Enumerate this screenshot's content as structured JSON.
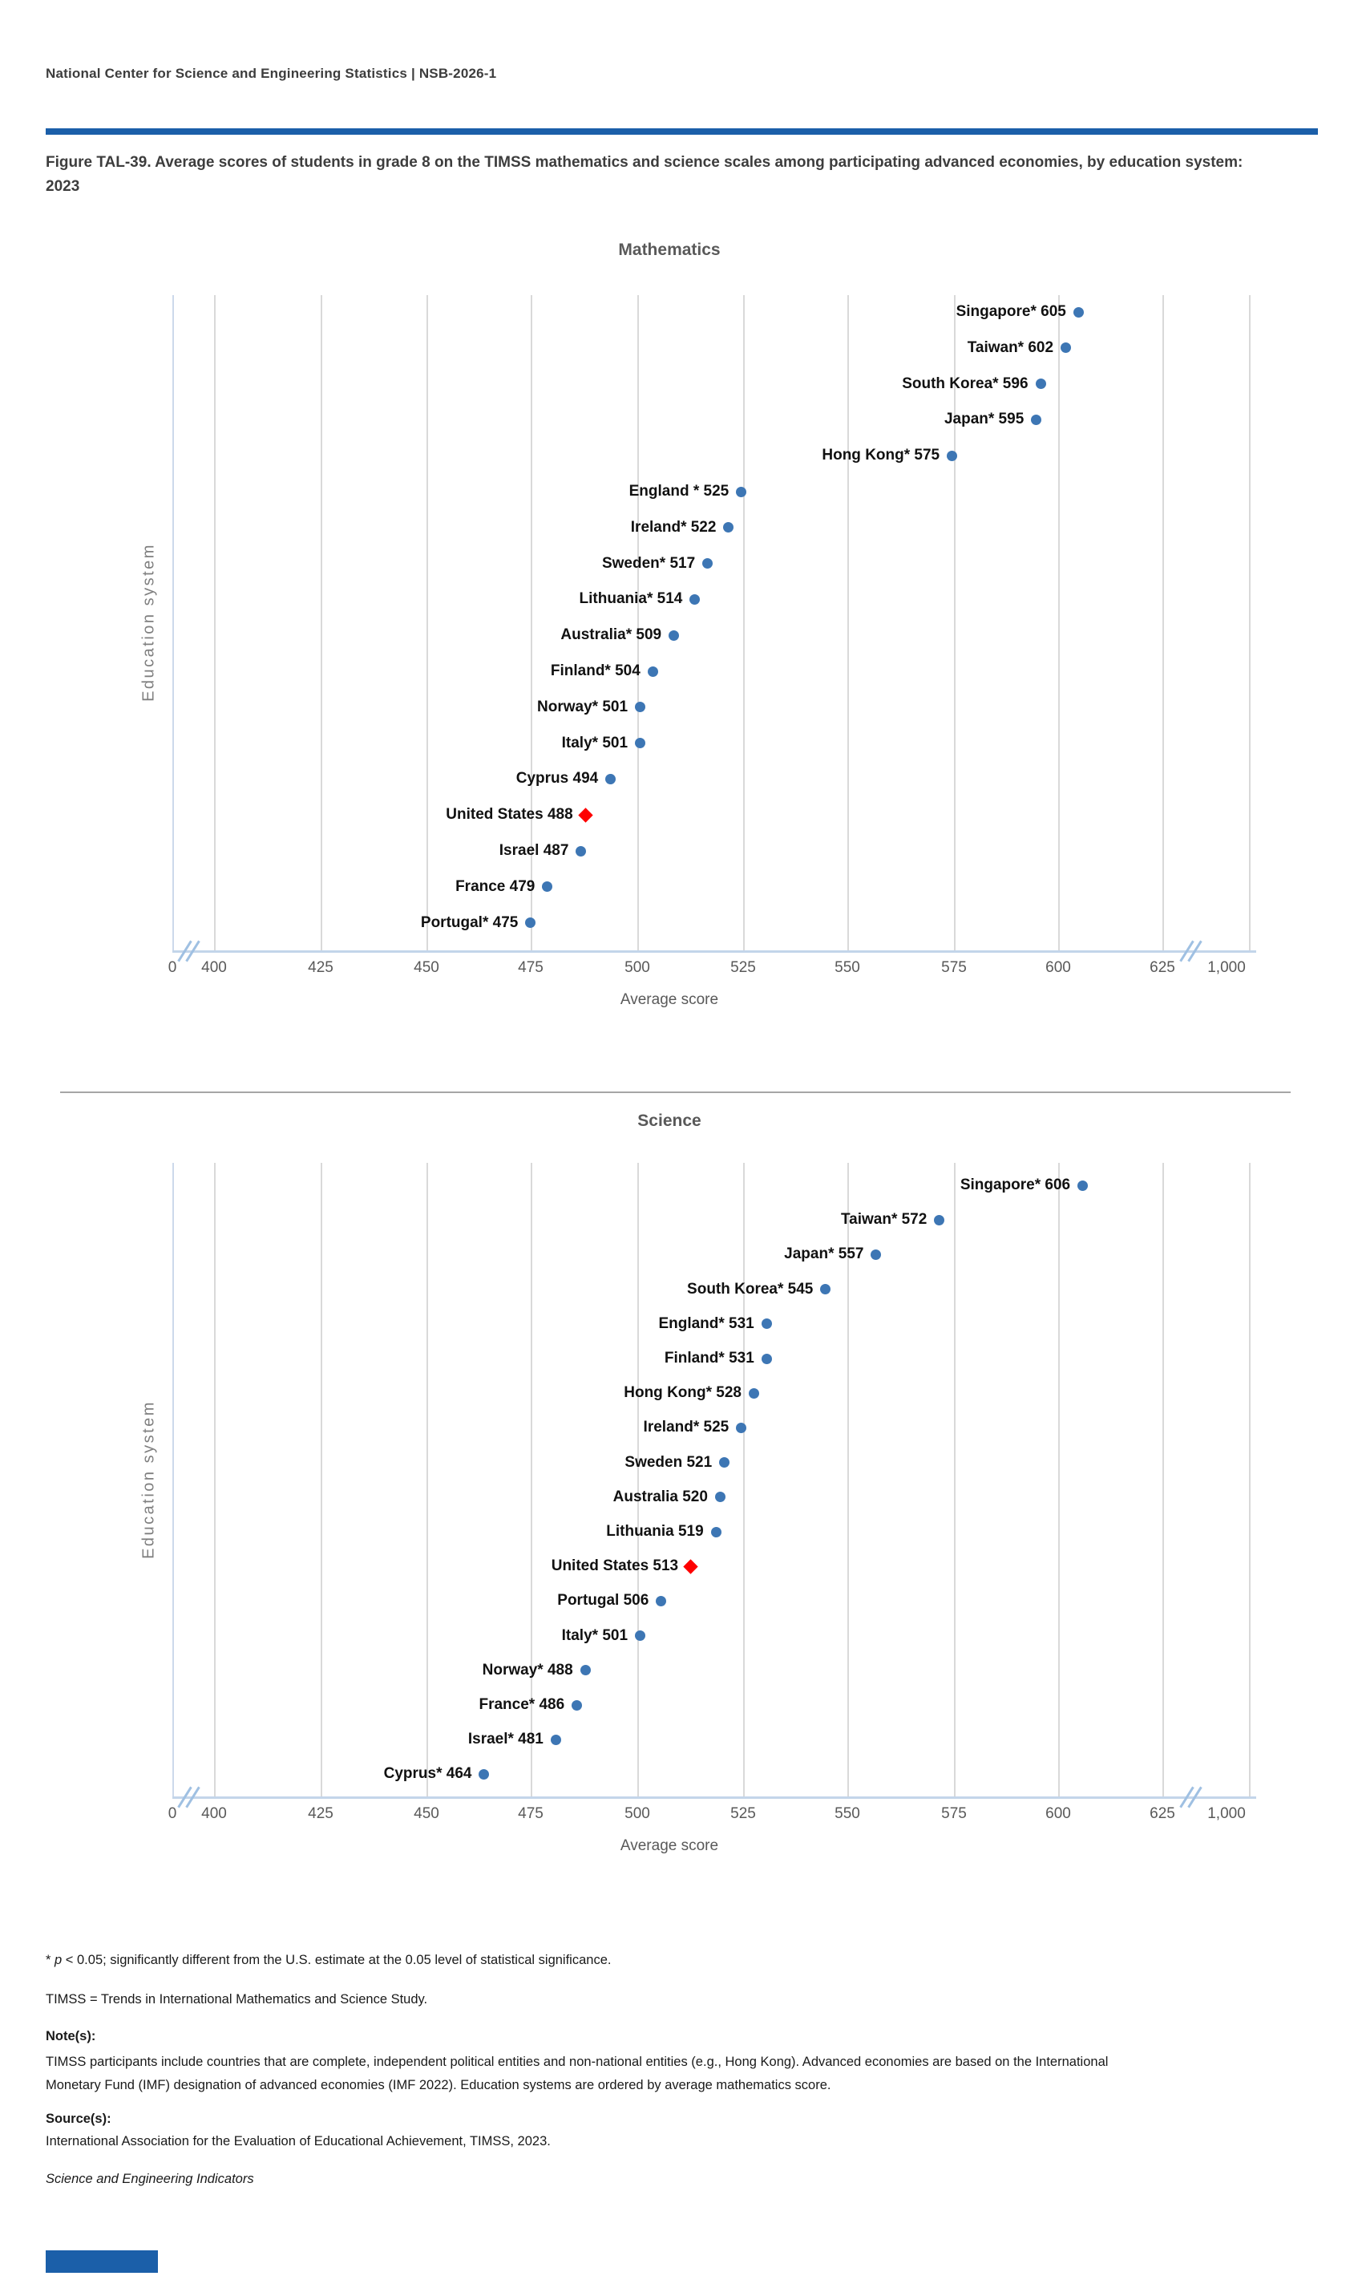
{
  "page": {
    "header": "National Center for Science and Engineering Statistics  |  NSB-2026-1",
    "figure_title": "Figure TAL-39. Average scores of students in grade 8 on the TIMSS mathematics and science scales among participating advanced economies, by education system: 2023",
    "footer_brand": "Science and Engineering Indicators"
  },
  "footnotes": {
    "significance_prefix": "* ",
    "significance_p": "p",
    "significance_rest": " < 0.05; significantly different from the U.S. estimate at the 0.05 level of statistical significance.",
    "timss_definition": "TIMSS = Trends in International Mathematics and Science Study.",
    "notes_heading": "Note(s):",
    "notes_body": "TIMSS participants include countries that are complete, independent political entities and non-national entities (e.g., Hong Kong). Advanced economies are based on the International Monetary Fund (IMF) designation of advanced economies (IMF 2022). Education systems are ordered by average mathematics score.",
    "source_heading": "Source(s):",
    "source_body": "International Association for the Evaluation of Educational Achievement, TIMSS, 2023."
  },
  "chart_data": [
    {
      "type": "scatter",
      "title": "Mathematics",
      "xlabel": "Average score",
      "ylabel": "Education system",
      "x_ticks": [
        "0",
        "400",
        "425",
        "450",
        "475",
        "500",
        "525",
        "550",
        "575",
        "600",
        "625",
        "1,000"
      ],
      "xlim_visible": [
        400,
        625
      ],
      "axis_breaks": "x-axis broken between 0 and 400 and between 625 and 1,000",
      "grid": true,
      "legend": "none",
      "marker_color": "#3d76b4",
      "highlight_color": "#fe0000",
      "points": [
        {
          "label": "Singapore*",
          "value": 605
        },
        {
          "label": "Taiwan*",
          "value": 602
        },
        {
          "label": "South Korea*",
          "value": 596
        },
        {
          "label": "Japan*",
          "value": 595
        },
        {
          "label": "Hong Kong*",
          "value": 575
        },
        {
          "label": "England *",
          "value": 525
        },
        {
          "label": "Ireland*",
          "value": 522
        },
        {
          "label": "Sweden*",
          "value": 517
        },
        {
          "label": "Lithuania*",
          "value": 514
        },
        {
          "label": "Australia*",
          "value": 509
        },
        {
          "label": "Finland*",
          "value": 504
        },
        {
          "label": "Norway*",
          "value": 501
        },
        {
          "label": "Italy*",
          "value": 501
        },
        {
          "label": "Cyprus",
          "value": 494
        },
        {
          "label": "United States",
          "value": 488,
          "highlight": true
        },
        {
          "label": "Israel",
          "value": 487
        },
        {
          "label": "France",
          "value": 479
        },
        {
          "label": "Portugal*",
          "value": 475
        }
      ]
    },
    {
      "type": "scatter",
      "title": "Science",
      "xlabel": "Average score",
      "ylabel": "Education system",
      "x_ticks": [
        "0",
        "400",
        "425",
        "450",
        "475",
        "500",
        "525",
        "550",
        "575",
        "600",
        "625",
        "1,000"
      ],
      "xlim_visible": [
        400,
        625
      ],
      "axis_breaks": "x-axis broken between 0 and 400 and between 625 and 1,000",
      "grid": true,
      "legend": "none",
      "marker_color": "#3d76b4",
      "highlight_color": "#fe0000",
      "points": [
        {
          "label": "Singapore*",
          "value": 606
        },
        {
          "label": "Taiwan*",
          "value": 572
        },
        {
          "label": "Japan*",
          "value": 557
        },
        {
          "label": "South Korea*",
          "value": 545
        },
        {
          "label": "England*",
          "value": 531
        },
        {
          "label": "Finland*",
          "value": 531
        },
        {
          "label": "Hong Kong*",
          "value": 528
        },
        {
          "label": "Ireland*",
          "value": 525
        },
        {
          "label": "Sweden",
          "value": 521
        },
        {
          "label": "Australia",
          "value": 520
        },
        {
          "label": "Lithuania",
          "value": 519
        },
        {
          "label": "United States",
          "value": 513,
          "highlight": true
        },
        {
          "label": "Portugal",
          "value": 506
        },
        {
          "label": "Italy*",
          "value": 501
        },
        {
          "label": "Norway*",
          "value": 488
        },
        {
          "label": "France*",
          "value": 486
        },
        {
          "label": "Israel*",
          "value": 481
        },
        {
          "label": "Cyprus*",
          "value": 464
        }
      ]
    }
  ]
}
